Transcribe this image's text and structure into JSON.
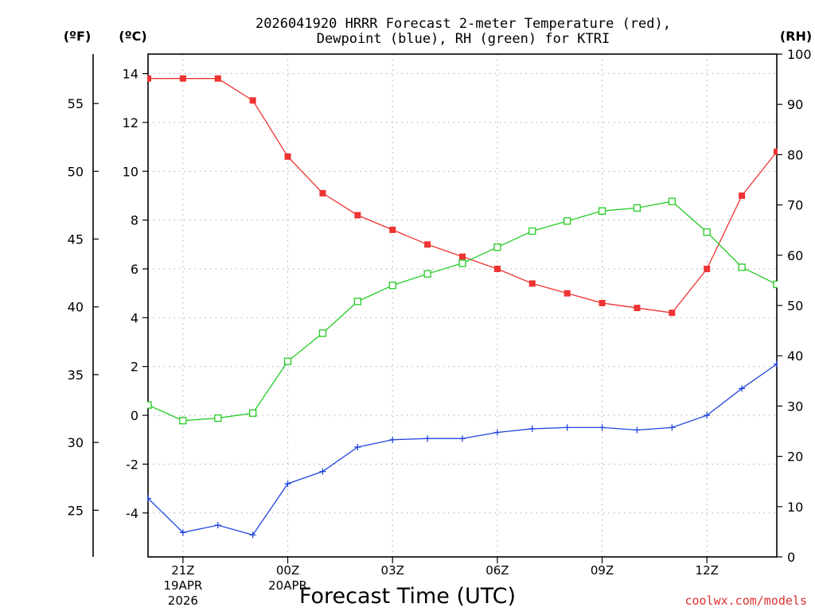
{
  "chart_data": {
    "type": "line",
    "title_line1": "2026041920 HRRR Forecast 2-meter Temperature (red),",
    "title_line2": "Dewpoint (blue), RH (green) for KTRI",
    "xlabel": "Forecast Time (UTC)",
    "credit": "coolwx.com/models",
    "units": {
      "fahrenheit": "(ºF)",
      "celsius": "(ºC)",
      "rh": "(RH)"
    },
    "x_hours": [
      0,
      1,
      2,
      3,
      4,
      5,
      6,
      7,
      8,
      9,
      10,
      11,
      12,
      13,
      14,
      15,
      16,
      17,
      18
    ],
    "xlim": [
      0,
      18
    ],
    "x_ticks": [
      {
        "hour": 1,
        "label": "21Z",
        "line2": "19APR",
        "line3": "2026"
      },
      {
        "hour": 4,
        "label": "00Z",
        "line2": "20APR",
        "line3": ""
      },
      {
        "hour": 7,
        "label": "03Z",
        "line2": "",
        "line3": ""
      },
      {
        "hour": 10,
        "label": "06Z",
        "line2": "",
        "line3": ""
      },
      {
        "hour": 13,
        "label": "09Z",
        "line2": "",
        "line3": ""
      },
      {
        "hour": 16,
        "label": "12Z",
        "line2": "",
        "line3": ""
      }
    ],
    "celsius_axis": {
      "ylim": [
        -5.8,
        14.8
      ],
      "ticks": [
        -4,
        -2,
        0,
        2,
        4,
        6,
        8,
        10,
        12,
        14
      ]
    },
    "fahrenheit_axis": {
      "ticks": [
        25,
        30,
        35,
        40,
        45,
        50,
        55
      ]
    },
    "rh_axis": {
      "ylim": [
        0,
        100
      ],
      "ticks": [
        0,
        10,
        20,
        30,
        40,
        50,
        60,
        70,
        80,
        90,
        100
      ]
    },
    "series": [
      {
        "name": "2-meter Temperature",
        "color": "#ee3333",
        "marker": "filled-square",
        "axis": "celsius",
        "values": [
          13.8,
          13.8,
          13.8,
          12.9,
          10.6,
          9.1,
          8.2,
          7.6,
          7.0,
          6.5,
          6.0,
          5.4,
          5.0,
          4.6,
          4.4,
          4.2,
          6.0,
          9.0,
          10.8
        ]
      },
      {
        "name": "Dewpoint",
        "color": "#2244dd",
        "marker": "plus",
        "axis": "celsius",
        "values": [
          -3.4,
          -4.8,
          -4.5,
          -4.9,
          -2.8,
          -2.3,
          -1.3,
          -1.0,
          -0.95,
          -0.95,
          -0.7,
          -0.55,
          -0.5,
          -0.5,
          -0.6,
          -0.5,
          0.0,
          1.1,
          2.1
        ]
      },
      {
        "name": "RH",
        "color": "#22cc22",
        "marker": "open-square",
        "axis": "rh",
        "values": [
          30.2,
          27.1,
          27.6,
          28.6,
          38.9,
          44.5,
          50.8,
          54.0,
          56.3,
          58.4,
          61.6,
          64.8,
          66.8,
          68.8,
          69.4,
          70.7,
          64.6,
          57.6,
          54.2
        ]
      }
    ]
  }
}
